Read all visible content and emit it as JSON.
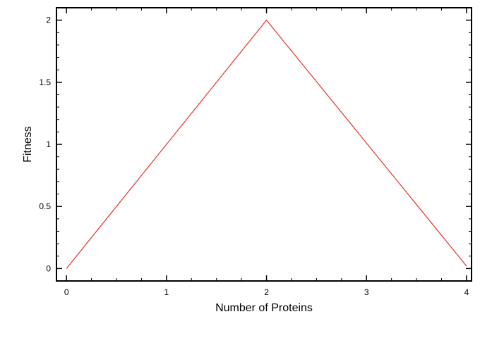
{
  "chart_data": {
    "type": "line",
    "title": "",
    "xlabel": "Number of Proteins",
    "ylabel": "Fitness",
    "xlim": [
      -0.1,
      4.05
    ],
    "ylim": [
      -0.1,
      2.1
    ],
    "x_ticks": [
      {
        "value": 0,
        "label": "0"
      },
      {
        "value": 1,
        "label": "1"
      },
      {
        "value": 2,
        "label": "2"
      },
      {
        "value": 3,
        "label": "3"
      },
      {
        "value": 4,
        "label": "4"
      }
    ],
    "y_ticks": [
      {
        "value": 0,
        "label": "0"
      },
      {
        "value": 0.5,
        "label": "0.5"
      },
      {
        "value": 1,
        "label": "1"
      },
      {
        "value": 1.5,
        "label": "1.5"
      },
      {
        "value": 2,
        "label": "2"
      }
    ],
    "grid": false,
    "legend": "none",
    "series": [
      {
        "color": "#e8322b",
        "x": [
          0,
          2,
          4
        ],
        "y": [
          0,
          2,
          0.02
        ]
      }
    ]
  }
}
